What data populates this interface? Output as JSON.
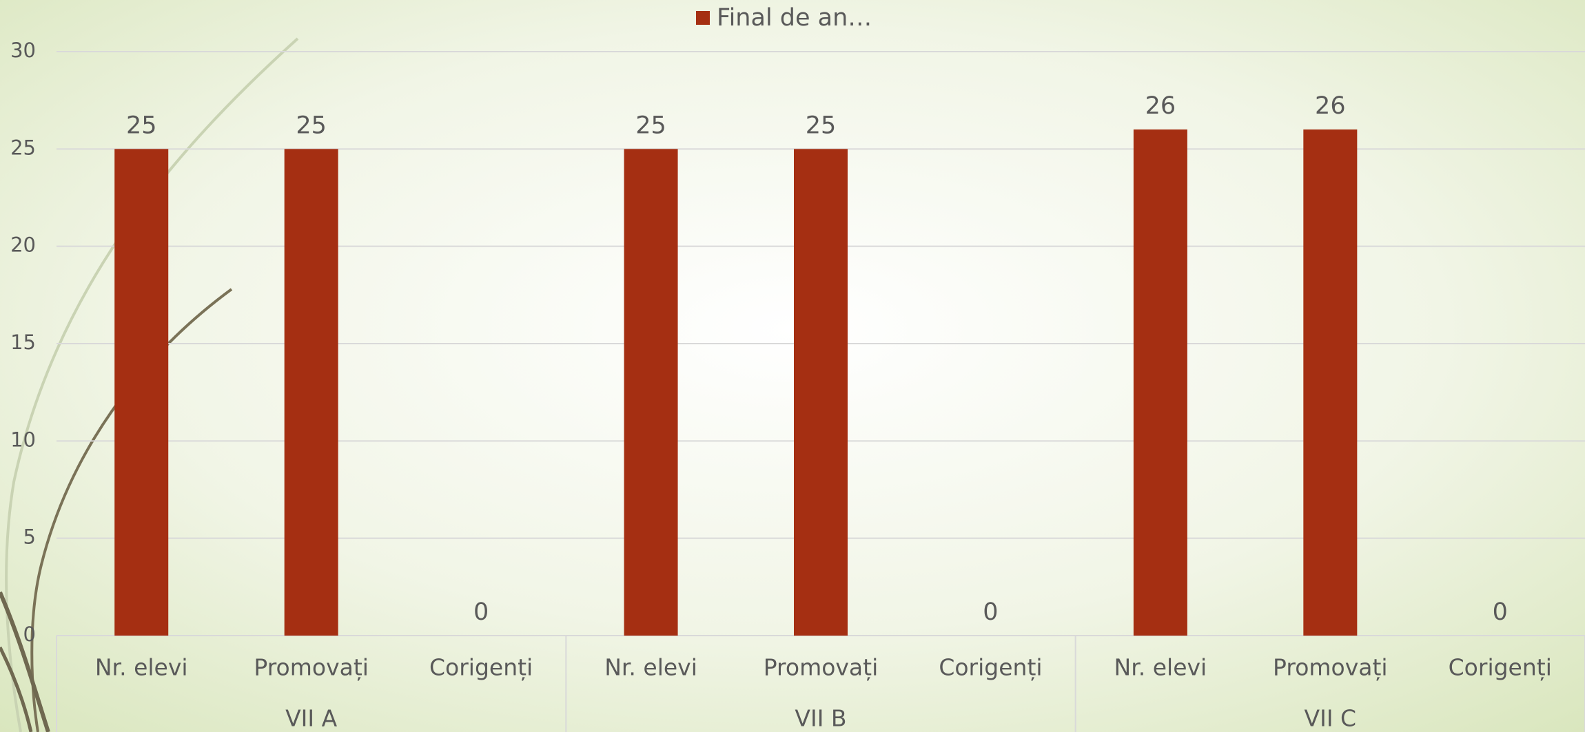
{
  "chart_data": {
    "type": "bar",
    "categories": [
      "Nr. elevi",
      "Promovați",
      "Corigenți",
      "Nr. elevi",
      "Promovați",
      "Corigenți",
      "Nr. elevi",
      "Promovați",
      "Corigenți"
    ],
    "groups": [
      "VII A",
      "VII B",
      "VII C"
    ],
    "series": [
      {
        "name": "Final de an…",
        "color": "#a52f12",
        "values": [
          25,
          25,
          0,
          25,
          25,
          0,
          26,
          26,
          0
        ]
      }
    ],
    "ylim": [
      0,
      30
    ],
    "yticks": [
      0,
      5,
      10,
      15,
      20,
      25,
      30
    ],
    "grid": true,
    "legend": "top"
  }
}
